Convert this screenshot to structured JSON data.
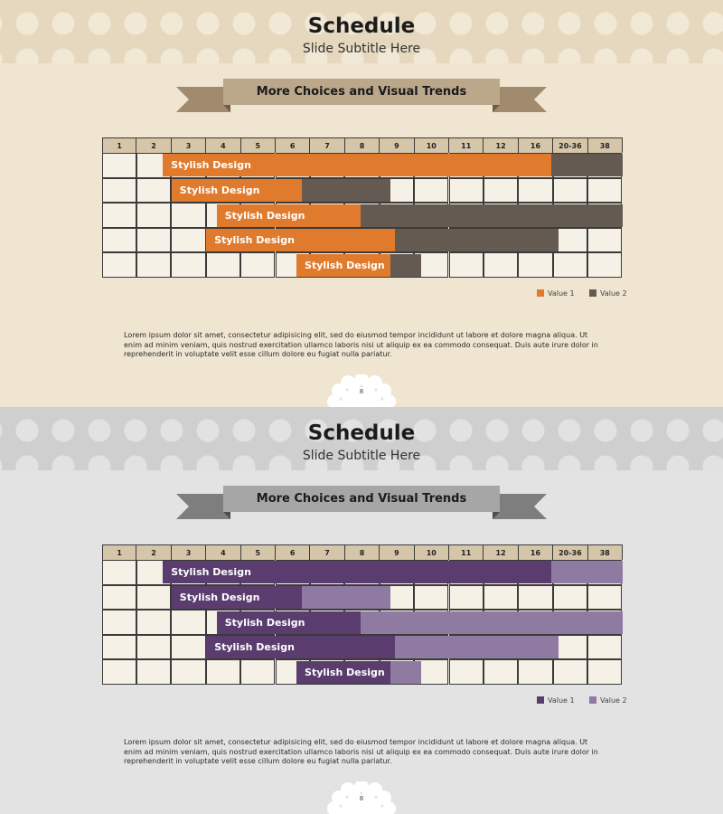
{
  "slides": [
    {
      "title": "Schedule",
      "subtitle": "Slide Subtitle Here",
      "ribbon": "More Choices and Visual Trends",
      "columns": [
        "1",
        "2",
        "3",
        "4",
        "5",
        "6",
        "7",
        "8",
        "9",
        "10",
        "11",
        "12",
        "16",
        "20-36",
        "38"
      ],
      "tasks": [
        {
          "label": "Stylish Design",
          "value1_start": 1.75,
          "value1_end": 12.95,
          "value2_end": 15.0
        },
        {
          "label": "Stylish Design",
          "value1_start": 2.0,
          "value1_end": 5.75,
          "value2_end": 8.3
        },
        {
          "label": "Stylish Design",
          "value1_start": 3.3,
          "value1_end": 7.45,
          "value2_end": 15.0
        },
        {
          "label": "Stylish Design",
          "value1_start": 3.0,
          "value1_end": 8.45,
          "value2_end": 13.15
        },
        {
          "label": "Stylish Design",
          "value1_start": 5.6,
          "value1_end": 8.3,
          "value2_end": 9.2
        }
      ],
      "legend": {
        "value1": "Value 1",
        "value2": "Value 2"
      },
      "colors": {
        "value1": "#e07b2e",
        "value2": "#645a52"
      },
      "body": "Lorem ipsum dolor sit amet, consectetur adipisicing elit, sed do eiusmod tempor incididunt ut labore et dolore magna aliqua. Ut enim ad minim veniam, quis nostrud exercitation ullamco laboris nisi ut aliquip ex ea commodo consequat. Duis aute irure dolor in reprehenderit in voluptate velit esse cillum dolore eu fugiat nulla pariatur.",
      "page": "8"
    },
    {
      "title": "Schedule",
      "subtitle": "Slide Subtitle Here",
      "ribbon": "More Choices and Visual Trends",
      "columns": [
        "1",
        "2",
        "3",
        "4",
        "5",
        "6",
        "7",
        "8",
        "9",
        "10",
        "11",
        "12",
        "16",
        "20-36",
        "38"
      ],
      "tasks": [
        {
          "label": "Stylish Design",
          "value1_start": 1.75,
          "value1_end": 12.95,
          "value2_end": 15.0
        },
        {
          "label": "Stylish Design",
          "value1_start": 2.0,
          "value1_end": 5.75,
          "value2_end": 8.3
        },
        {
          "label": "Stylish Design",
          "value1_start": 3.3,
          "value1_end": 7.45,
          "value2_end": 15.0
        },
        {
          "label": "Stylish Design",
          "value1_start": 3.0,
          "value1_end": 8.45,
          "value2_end": 13.15
        },
        {
          "label": "Stylish Design",
          "value1_start": 5.6,
          "value1_end": 8.3,
          "value2_end": 9.2
        }
      ],
      "legend": {
        "value1": "Value 1",
        "value2": "Value 2"
      },
      "colors": {
        "value1": "#5a3d6e",
        "value2": "#8f7aa2"
      },
      "body": "Lorem ipsum dolor sit amet, consectetur adipisicing elit, sed do eiusmod tempor incididunt ut labore et dolore magna aliqua. Ut enim ad minim veniam, quis nostrud exercitation ullamco laboris nisi ut aliquip ex ea commodo consequat. Duis aute irure dolor in reprehenderit in voluptate velit esse cillum dolore eu fugiat nulla pariatur.",
      "page": "8"
    }
  ]
}
